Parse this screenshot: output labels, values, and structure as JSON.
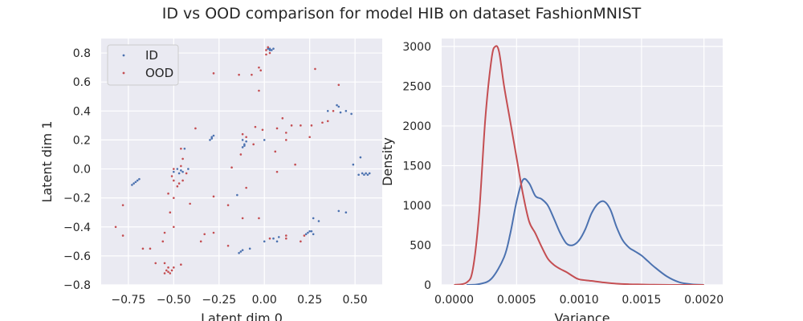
{
  "figure_title": "ID vs OOD comparison for model HIB on dataset FashionMNIST",
  "colors": {
    "id": "#4c72b0",
    "ood": "#c44e52",
    "axes_bg": "#eaeaf2",
    "grid": "#ffffff"
  },
  "chart_data": [
    {
      "type": "scatter",
      "xlabel": "Latent dim 0",
      "ylabel": "Latent dim 1",
      "xlim": [
        -0.9,
        0.65
      ],
      "ylim": [
        -0.8,
        0.9
      ],
      "xticks": [
        -0.75,
        -0.5,
        -0.25,
        0.0,
        0.25,
        0.5
      ],
      "xtick_labels": [
        "−0.75",
        "−0.50",
        "−0.25",
        "0.00",
        "0.25",
        "0.50"
      ],
      "yticks": [
        -0.8,
        -0.6,
        -0.4,
        -0.2,
        0.0,
        0.2,
        0.4,
        0.6,
        0.8
      ],
      "ytick_labels": [
        "−0.8",
        "−0.6",
        "−0.4",
        "−0.2",
        "0.0",
        "0.2",
        "0.4",
        "0.6",
        "0.8"
      ],
      "grid": true,
      "legend_position": "top-left",
      "series": [
        {
          "name": "ID",
          "color": "#4c72b0",
          "points": [
            [
              0.02,
              0.83
            ],
            [
              0.03,
              0.83
            ],
            [
              0.04,
              0.82
            ],
            [
              0.03,
              0.82
            ],
            [
              0.05,
              0.83
            ],
            [
              -0.72,
              -0.1
            ],
            [
              -0.71,
              -0.09
            ],
            [
              -0.7,
              -0.08
            ],
            [
              -0.73,
              -0.11
            ],
            [
              -0.69,
              -0.07
            ],
            [
              -0.5,
              -0.02
            ],
            [
              -0.48,
              0.0
            ],
            [
              -0.46,
              -0.01
            ],
            [
              -0.45,
              -0.02
            ],
            [
              -0.47,
              -0.03
            ],
            [
              -0.44,
              0.14
            ],
            [
              -0.42,
              0.0
            ],
            [
              -0.3,
              0.2
            ],
            [
              -0.29,
              0.22
            ],
            [
              -0.28,
              0.23
            ],
            [
              -0.29,
              0.21
            ],
            [
              -0.12,
              0.15
            ],
            [
              -0.11,
              0.17
            ],
            [
              -0.1,
              0.19
            ],
            [
              -0.12,
              0.2
            ],
            [
              -0.11,
              0.16
            ],
            [
              -0.14,
              -0.58
            ],
            [
              -0.12,
              -0.56
            ],
            [
              -0.08,
              -0.55
            ],
            [
              -0.13,
              -0.57
            ],
            [
              0.0,
              -0.5
            ],
            [
              0.05,
              -0.48
            ],
            [
              0.08,
              -0.47
            ],
            [
              0.07,
              -0.5
            ],
            [
              0.24,
              -0.44
            ],
            [
              0.25,
              -0.43
            ],
            [
              0.26,
              -0.43
            ],
            [
              0.27,
              -0.45
            ],
            [
              0.23,
              -0.45
            ],
            [
              0.27,
              -0.34
            ],
            [
              0.3,
              -0.36
            ],
            [
              0.35,
              0.4
            ],
            [
              0.4,
              0.44
            ],
            [
              0.41,
              0.43
            ],
            [
              0.42,
              0.39
            ],
            [
              0.45,
              0.4
            ],
            [
              0.48,
              0.38
            ],
            [
              0.54,
              -0.03
            ],
            [
              0.55,
              -0.04
            ],
            [
              0.56,
              -0.03
            ],
            [
              0.57,
              -0.04
            ],
            [
              0.58,
              -0.03
            ],
            [
              0.52,
              -0.04
            ],
            [
              0.53,
              0.08
            ],
            [
              0.41,
              -0.29
            ],
            [
              0.45,
              -0.3
            ],
            [
              0.49,
              0.03
            ],
            [
              -0.15,
              -0.18
            ],
            [
              0.0,
              0.2
            ]
          ]
        },
        {
          "name": "OOD",
          "color": "#c44e52",
          "points": [
            [
              0.01,
              0.82
            ],
            [
              0.02,
              0.84
            ],
            [
              0.03,
              0.8
            ],
            [
              0.01,
              0.79
            ],
            [
              -0.03,
              0.7
            ],
            [
              -0.02,
              0.68
            ],
            [
              -0.07,
              0.65
            ],
            [
              -0.14,
              0.65
            ],
            [
              -0.28,
              0.66
            ],
            [
              0.28,
              0.69
            ],
            [
              0.41,
              0.58
            ],
            [
              -0.03,
              0.54
            ],
            [
              0.1,
              0.35
            ],
            [
              0.15,
              0.3
            ],
            [
              0.2,
              0.3
            ],
            [
              0.26,
              0.3
            ],
            [
              0.32,
              0.32
            ],
            [
              0.35,
              0.33
            ],
            [
              0.38,
              0.4
            ],
            [
              -0.38,
              0.28
            ],
            [
              -0.05,
              0.29
            ],
            [
              -0.01,
              0.27
            ],
            [
              0.07,
              0.28
            ],
            [
              0.12,
              0.2
            ],
            [
              0.12,
              0.25
            ],
            [
              0.25,
              0.22
            ],
            [
              0.17,
              0.03
            ],
            [
              0.06,
              0.12
            ],
            [
              0.07,
              -0.02
            ],
            [
              -0.12,
              0.24
            ],
            [
              -0.1,
              0.22
            ],
            [
              -0.13,
              0.1
            ],
            [
              -0.06,
              0.17
            ],
            [
              -0.46,
              0.14
            ],
            [
              -0.45,
              0.07
            ],
            [
              -0.46,
              0.02
            ],
            [
              -0.43,
              -0.03
            ],
            [
              -0.5,
              0.0
            ],
            [
              -0.51,
              -0.05
            ],
            [
              -0.5,
              -0.08
            ],
            [
              -0.47,
              -0.1
            ],
            [
              -0.45,
              -0.08
            ],
            [
              -0.48,
              -0.12
            ],
            [
              -0.53,
              -0.17
            ],
            [
              -0.5,
              -0.2
            ],
            [
              -0.52,
              -0.3
            ],
            [
              -0.5,
              -0.4
            ],
            [
              -0.41,
              -0.24
            ],
            [
              -0.28,
              -0.19
            ],
            [
              -0.2,
              -0.25
            ],
            [
              -0.1,
              -0.13
            ],
            [
              -0.18,
              0.01
            ],
            [
              -0.55,
              -0.44
            ],
            [
              -0.56,
              -0.5
            ],
            [
              -0.63,
              -0.55
            ],
            [
              -0.67,
              -0.55
            ],
            [
              -0.6,
              -0.65
            ],
            [
              -0.55,
              -0.65
            ],
            [
              -0.54,
              -0.7
            ],
            [
              -0.53,
              -0.71
            ],
            [
              -0.52,
              -0.72
            ],
            [
              -0.51,
              -0.7
            ],
            [
              -0.5,
              -0.68
            ],
            [
              -0.55,
              -0.72
            ],
            [
              -0.53,
              -0.68
            ],
            [
              -0.46,
              -0.66
            ],
            [
              -0.82,
              -0.4
            ],
            [
              -0.78,
              -0.46
            ],
            [
              -0.78,
              -0.25
            ],
            [
              -0.33,
              -0.45
            ],
            [
              -0.28,
              -0.44
            ],
            [
              -0.35,
              -0.5
            ],
            [
              -0.2,
              -0.53
            ],
            [
              -0.12,
              -0.34
            ],
            [
              -0.03,
              -0.34
            ],
            [
              0.03,
              -0.48
            ],
            [
              0.12,
              -0.46
            ],
            [
              0.12,
              -0.48
            ],
            [
              0.2,
              -0.5
            ],
            [
              0.22,
              -0.46
            ]
          ]
        }
      ]
    },
    {
      "type": "line",
      "xlabel": "Variance",
      "ylabel": "Density",
      "xlim": [
        -0.0001,
        0.00215
      ],
      "ylim": [
        0,
        3100
      ],
      "xticks": [
        0.0,
        0.0005,
        0.001,
        0.0015,
        0.002
      ],
      "xtick_labels": [
        "0.0000",
        "0.0005",
        "0.0010",
        "0.0015",
        "0.0020"
      ],
      "yticks": [
        0,
        500,
        1000,
        1500,
        2000,
        2500,
        3000
      ],
      "ytick_labels": [
        "0",
        "500",
        "1000",
        "1500",
        "2000",
        "2500",
        "3000"
      ],
      "grid": true,
      "series": [
        {
          "name": "ID",
          "color": "#4c72b0",
          "x": [
            0.0001,
            0.0002,
            0.0003,
            0.0004,
            0.00045,
            0.0005,
            0.00055,
            0.0006,
            0.00065,
            0.0007,
            0.00075,
            0.0008,
            0.00085,
            0.0009,
            0.00095,
            0.001,
            0.00105,
            0.0011,
            0.00115,
            0.0012,
            0.00125,
            0.0013,
            0.00135,
            0.0014,
            0.00145,
            0.0015,
            0.00155,
            0.0016,
            0.0017,
            0.0018,
            0.0019,
            0.002
          ],
          "y": [
            0,
            10,
            80,
            350,
            650,
            1050,
            1320,
            1280,
            1120,
            1080,
            1000,
            830,
            650,
            520,
            500,
            560,
            700,
            900,
            1020,
            1050,
            950,
            730,
            560,
            470,
            420,
            370,
            300,
            230,
            110,
            35,
            8,
            0
          ]
        },
        {
          "name": "OOD",
          "color": "#c44e52",
          "x": [
            0.0,
            0.0001,
            0.00015,
            0.0002,
            0.00025,
            0.0003,
            0.00033,
            0.00036,
            0.0004,
            0.00045,
            0.0005,
            0.00055,
            0.0006,
            0.00065,
            0.0007,
            0.00075,
            0.0008,
            0.00085,
            0.0009,
            0.00095,
            0.001,
            0.0011,
            0.0012,
            0.0013,
            0.0014,
            0.0015,
            0.0016,
            0.0018,
            0.002
          ],
          "y": [
            0,
            30,
            200,
            900,
            2100,
            2850,
            3000,
            2930,
            2500,
            2050,
            1600,
            1150,
            800,
            650,
            480,
            330,
            250,
            200,
            160,
            110,
            70,
            50,
            30,
            15,
            8,
            5,
            2,
            0,
            0
          ]
        }
      ]
    }
  ]
}
